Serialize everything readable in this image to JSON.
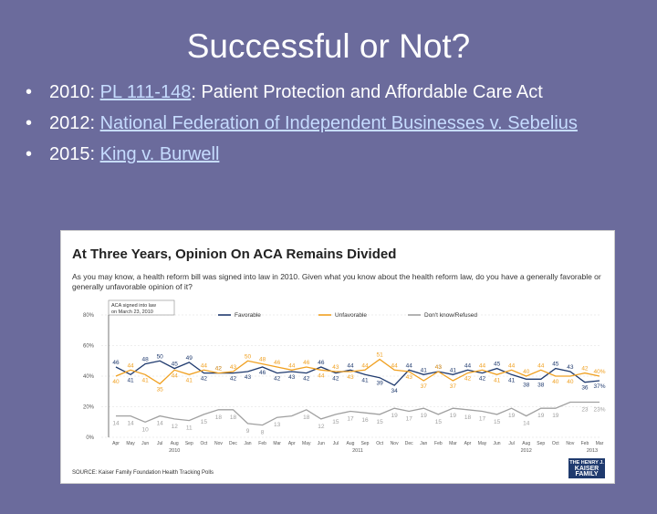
{
  "title": "Successful or Not?",
  "bullets": [
    {
      "prefix": "2010: ",
      "link": "PL 111-148",
      "suffix": ": Patient Protection and Affordable Care Act"
    },
    {
      "prefix": "2012: ",
      "link": "National Federation of Independent Businesses v. Sebelius",
      "suffix": ""
    },
    {
      "prefix": "2015: ",
      "link": "King v. Burwell",
      "suffix": ""
    }
  ],
  "figure": {
    "title": "At Three Years, Opinion On ACA Remains Divided",
    "question": "As you may know, a health reform bill was signed into law in 2010. Given what you know about the health reform law, do you have a generally favorable or generally unfavorable opinion of it?",
    "source": "SOURCE: Kaiser Family Foundation Health Tracking Polls",
    "annotation_line1": "ACA signed into law",
    "annotation_line2": "on March 23, 2010",
    "logo": [
      "THE HENRY J.",
      "KAISER",
      "FAMILY",
      "FOUNDATION"
    ],
    "colors": {
      "favorable": "#1f3a6e",
      "unfavorable": "#f0a020",
      "dontknow": "#a0a0a0"
    }
  },
  "chart_data": {
    "type": "line",
    "ylim": [
      0,
      80
    ],
    "yticks": [
      "0%",
      "20%",
      "40%",
      "60%",
      "80%"
    ],
    "month_labels": [
      "Apr",
      "May",
      "Jun",
      "Jul",
      "Aug",
      "Sep",
      "Oct",
      "Nov",
      "Dec",
      "Jan",
      "Feb",
      "Mar",
      "Apr",
      "May",
      "Jun",
      "Jul",
      "Aug",
      "Sep",
      "Oct",
      "Nov",
      "Dec",
      "Jan",
      "Feb",
      "Mar",
      "Apr",
      "May",
      "Jun",
      "Jul",
      "Aug",
      "Sep",
      "Oct",
      "Nov",
      "Feb",
      "Mar"
    ],
    "year_labels": [
      {
        "label": "2010",
        "at": 4
      },
      {
        "label": "2011",
        "at": 16.5
      },
      {
        "label": "2012",
        "at": 28
      },
      {
        "label": "2013",
        "at": 32.5
      }
    ],
    "legend": [
      "Favorable",
      "Unfavorable",
      "Don't know/Refused"
    ],
    "series": [
      {
        "name": "Favorable",
        "values": [
          46,
          41,
          48,
          50,
          45,
          49,
          42,
          42,
          42,
          43,
          46,
          42,
          43,
          42,
          46,
          42,
          44,
          41,
          39,
          34,
          44,
          41,
          43,
          41,
          44,
          42,
          45,
          41,
          38,
          38,
          45,
          43,
          36,
          37
        ]
      },
      {
        "name": "Unfavorable",
        "values": [
          40,
          44,
          41,
          35,
          44,
          41,
          44,
          42,
          43,
          50,
          48,
          46,
          44,
          46,
          44,
          43,
          43,
          44,
          51,
          44,
          43,
          37,
          43,
          37,
          42,
          44,
          41,
          44,
          40,
          44,
          40,
          40,
          42,
          40
        ]
      },
      {
        "name": "Don't know/Refused",
        "values": [
          14,
          14,
          10,
          14,
          12,
          11,
          15,
          18,
          18,
          9,
          8,
          13,
          14,
          18,
          12,
          15,
          17,
          16,
          15,
          19,
          17,
          19,
          15,
          19,
          18,
          17,
          15,
          19,
          14,
          19,
          19,
          23,
          23,
          23
        ]
      }
    ],
    "series_labels": [
      {
        "name": "Favorable",
        "labels": [
          {
            "i": 0,
            "v": "46"
          },
          {
            "i": 1,
            "v": "41"
          },
          {
            "i": 2,
            "v": "48"
          },
          {
            "i": 3,
            "v": "50"
          },
          {
            "i": 4,
            "v": "45"
          },
          {
            "i": 5,
            "v": "49"
          },
          {
            "i": 6,
            "v": "42"
          },
          {
            "i": 7,
            "v": "42"
          },
          {
            "i": 8,
            "v": "42"
          },
          {
            "i": 9,
            "v": "43"
          },
          {
            "i": 10,
            "v": "46"
          },
          {
            "i": 11,
            "v": "42"
          },
          {
            "i": 12,
            "v": "43"
          },
          {
            "i": 13,
            "v": "42"
          },
          {
            "i": 14,
            "v": "46"
          },
          {
            "i": 15,
            "v": "42"
          },
          {
            "i": 16,
            "v": "44"
          },
          {
            "i": 17,
            "v": "41"
          },
          {
            "i": 18,
            "v": "39"
          },
          {
            "i": 19,
            "v": "34"
          },
          {
            "i": 20,
            "v": "44"
          },
          {
            "i": 21,
            "v": "41"
          },
          {
            "i": 22,
            "v": "43"
          },
          {
            "i": 23,
            "v": "41"
          },
          {
            "i": 24,
            "v": "44"
          },
          {
            "i": 25,
            "v": "42"
          },
          {
            "i": 26,
            "v": "45"
          },
          {
            "i": 27,
            "v": "41"
          },
          {
            "i": 28,
            "v": "38"
          },
          {
            "i": 29,
            "v": "38"
          },
          {
            "i": 30,
            "v": "45"
          },
          {
            "i": 31,
            "v": "43"
          },
          {
            "i": 32,
            "v": "36"
          },
          {
            "i": 33,
            "v": "37%"
          }
        ]
      },
      {
        "name": "Unfavorable",
        "labels": [
          {
            "i": 0,
            "v": "40"
          },
          {
            "i": 1,
            "v": "44"
          },
          {
            "i": 2,
            "v": "41"
          },
          {
            "i": 3,
            "v": "35"
          },
          {
            "i": 4,
            "v": "44"
          },
          {
            "i": 5,
            "v": "41"
          },
          {
            "i": 6,
            "v": "44"
          },
          {
            "i": 7,
            "v": "42"
          },
          {
            "i": 8,
            "v": "43"
          },
          {
            "i": 9,
            "v": "50"
          },
          {
            "i": 10,
            "v": "48"
          },
          {
            "i": 11,
            "v": "46"
          },
          {
            "i": 12,
            "v": "44"
          },
          {
            "i": 13,
            "v": "46"
          },
          {
            "i": 14,
            "v": "44"
          },
          {
            "i": 15,
            "v": "43"
          },
          {
            "i": 16,
            "v": "43"
          },
          {
            "i": 17,
            "v": "44"
          },
          {
            "i": 18,
            "v": "51"
          },
          {
            "i": 19,
            "v": "44"
          },
          {
            "i": 20,
            "v": "43"
          },
          {
            "i": 21,
            "v": "37"
          },
          {
            "i": 22,
            "v": "43"
          },
          {
            "i": 23,
            "v": "37"
          },
          {
            "i": 24,
            "v": "42"
          },
          {
            "i": 25,
            "v": "44"
          },
          {
            "i": 26,
            "v": "41"
          },
          {
            "i": 27,
            "v": "44"
          },
          {
            "i": 28,
            "v": "40"
          },
          {
            "i": 29,
            "v": "44"
          },
          {
            "i": 30,
            "v": "40"
          },
          {
            "i": 31,
            "v": "40"
          },
          {
            "i": 32,
            "v": "42"
          },
          {
            "i": 33,
            "v": "40%"
          }
        ]
      },
      {
        "name": "Don't know/Refused",
        "labels": [
          {
            "i": 0,
            "v": "14"
          },
          {
            "i": 1,
            "v": "14"
          },
          {
            "i": 2,
            "v": "10"
          },
          {
            "i": 3,
            "v": "14"
          },
          {
            "i": 4,
            "v": "12"
          },
          {
            "i": 5,
            "v": "11"
          },
          {
            "i": 6,
            "v": "15"
          },
          {
            "i": 7,
            "v": "18"
          },
          {
            "i": 8,
            "v": "18"
          },
          {
            "i": 9,
            "v": "9"
          },
          {
            "i": 10,
            "v": "8"
          },
          {
            "i": 11,
            "v": "13"
          },
          {
            "i": 13,
            "v": "18"
          },
          {
            "i": 14,
            "v": "12"
          },
          {
            "i": 15,
            "v": "15"
          },
          {
            "i": 16,
            "v": "17"
          },
          {
            "i": 17,
            "v": "16"
          },
          {
            "i": 18,
            "v": "15"
          },
          {
            "i": 19,
            "v": "19"
          },
          {
            "i": 20,
            "v": "17"
          },
          {
            "i": 21,
            "v": "19"
          },
          {
            "i": 22,
            "v": "15"
          },
          {
            "i": 23,
            "v": "19"
          },
          {
            "i": 24,
            "v": "18"
          },
          {
            "i": 25,
            "v": "17"
          },
          {
            "i": 26,
            "v": "15"
          },
          {
            "i": 27,
            "v": "19"
          },
          {
            "i": 28,
            "v": "14"
          },
          {
            "i": 29,
            "v": "19"
          },
          {
            "i": 30,
            "v": "19"
          },
          {
            "i": 32,
            "v": "23"
          },
          {
            "i": 33,
            "v": "23%"
          }
        ]
      }
    ]
  }
}
